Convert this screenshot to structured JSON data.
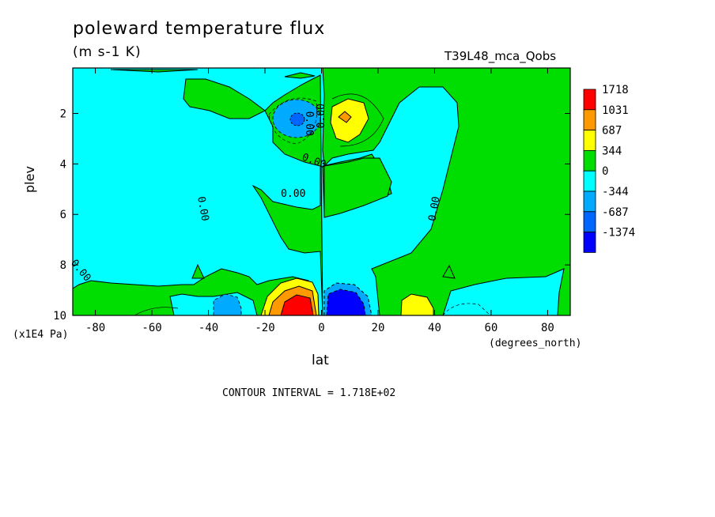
{
  "chart_data": {
    "type": "heatmap",
    "title": "poleward temperature flux",
    "units": "(m s-1 K)",
    "run_id": "T39L48_mca_Qobs",
    "xlabel": "lat",
    "xunits": "(degrees_north)",
    "ylabel": "plev",
    "yunits": "(x1E4 Pa)",
    "contour_interval": "CONTOUR INTERVAL = 1.718E+02",
    "xlim": [
      -88,
      88
    ],
    "ylim": [
      10,
      0.2
    ],
    "x_ticks": [
      -80,
      -60,
      -40,
      -20,
      0,
      20,
      40,
      60,
      80
    ],
    "x_tick_labels": [
      "-80",
      "-60",
      "-40",
      "-20",
      "0",
      "20",
      "40",
      "60",
      "80"
    ],
    "y_ticks": [
      2,
      4,
      6,
      8,
      10
    ],
    "y_tick_labels": [
      "2",
      "4",
      "6",
      "8",
      "10"
    ],
    "colorbar": {
      "levels": [
        "1718",
        "1031",
        "687",
        "344",
        "0",
        "-344",
        "-687",
        "-1374"
      ],
      "colors": [
        "#ff0000",
        "#ff9900",
        "#ffff00",
        "#00dd00",
        "#00ffff",
        "#00aaff",
        "#0066ff",
        "#0000ff"
      ]
    },
    "contour_labels": [
      "0.00",
      "0.00",
      "0.00",
      "0.00",
      "0.00",
      "0.00",
      "0.00"
    ],
    "features": [
      {
        "lat": -8,
        "plev": 2.1,
        "value": -900
      },
      {
        "lat": 8,
        "plev": 2.1,
        "value": 900
      },
      {
        "lat": -8,
        "plev": 9.6,
        "value": 1718
      },
      {
        "lat": 8,
        "plev": 9.5,
        "value": -1374
      },
      {
        "lat": -33,
        "plev": 9.5,
        "value": -687
      },
      {
        "lat": 33,
        "plev": 9.6,
        "value": 687
      }
    ]
  }
}
